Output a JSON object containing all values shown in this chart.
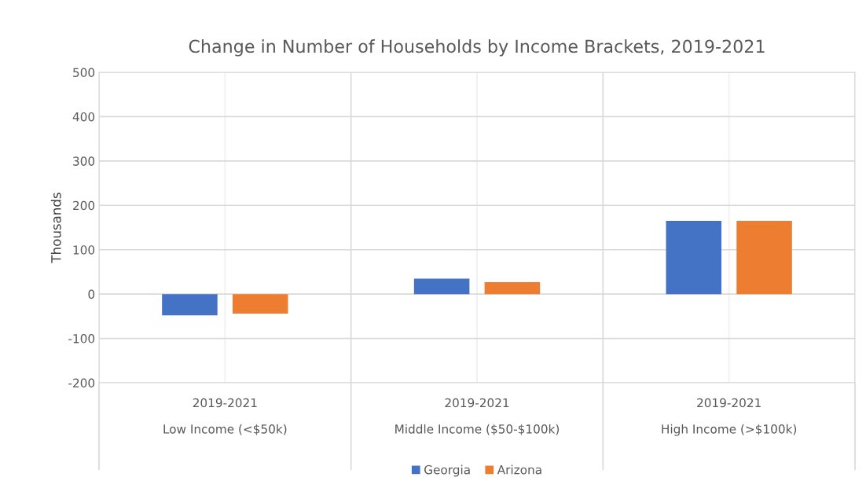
{
  "chart_data": {
    "type": "bar",
    "title": "Change in Number of Households by Income Brackets, 2019-2021",
    "ylabel": "Thousands",
    "categories": [
      "2019-2021\nLow Income (<$50k)",
      "2019-2021\nMiddle Income ($50-$100k)",
      "2019-2021\nHigh Income (>$100k)"
    ],
    "series": [
      {
        "name": "Georgia",
        "color": "#4472c4",
        "values": [
          -48,
          35,
          165
        ]
      },
      {
        "name": "Arizona",
        "color": "#ed7d31",
        "values": [
          -44,
          27,
          165
        ]
      }
    ],
    "ylim": [
      -200,
      500
    ],
    "yticks": [
      -200,
      -100,
      0,
      100,
      200,
      300,
      400,
      500
    ],
    "grid": true,
    "legend": "bottom"
  }
}
